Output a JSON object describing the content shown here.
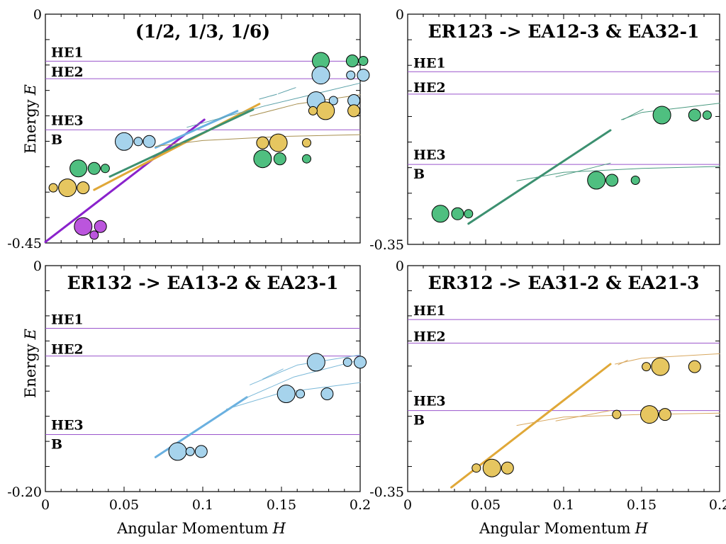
{
  "colors": {
    "green": "#4fbf80",
    "blue": "#a6d3ec",
    "yellow": "#e6c660",
    "purple": "#bb55dd",
    "level": "#9a55cc",
    "line_purple": "#8a22cc",
    "line_orange": "#e0a838",
    "line_green": "#3c9070",
    "line_blue": "#6ab0e0",
    "thin_teal": "#5aa0a8",
    "thin_olive": "#a89050",
    "thin_green": "#4a9a80",
    "thin_blue": "#7ab8d8",
    "thin_orange": "#d8a860"
  },
  "axes": {
    "xlabel": "Angular Momentum",
    "xlabel_var": "H",
    "ylabel": "Energy",
    "ylabel_var": "E"
  },
  "chart_data": [
    {
      "type": "scatter",
      "title": "(1/2, 1/3, 1/6)",
      "xlim": [
        0,
        0.2
      ],
      "ylim": [
        -0.45,
        0
      ],
      "ytick_labels": [
        "0",
        "-0.45"
      ],
      "xtick_labels": [],
      "levels": [
        {
          "name": "HE1",
          "y": -0.0925
        },
        {
          "name": "HE2",
          "y": -0.127
        },
        {
          "name": "HE3",
          "y": -0.2275
        },
        {
          "name": "B",
          "y": -0.2275
        }
      ],
      "lines": [
        {
          "color": "line_purple",
          "width": 3,
          "points": [
            [
              0,
              -0.448
            ],
            [
              0.101,
              -0.2075
            ]
          ]
        },
        {
          "color": "line_orange",
          "width": 3,
          "points": [
            [
              0.031,
              -0.3455
            ],
            [
              0.136,
              -0.1765
            ]
          ]
        },
        {
          "color": "line_green",
          "width": 3,
          "points": [
            [
              0.041,
              -0.3195
            ],
            [
              0.132,
              -0.1875
            ]
          ]
        },
        {
          "color": "line_blue",
          "width": 3,
          "points": [
            [
              0.07,
              -0.2625
            ],
            [
              0.122,
              -0.1905
            ]
          ]
        },
        {
          "color": "thin_teal",
          "width": 1,
          "points": [
            [
              0.09,
              -0.2225
            ],
            [
              0.14,
              -0.18
            ],
            [
              0.2,
              -0.1355
            ]
          ]
        },
        {
          "color": "thin_teal",
          "width": 1,
          "points": [
            [
              0.136,
              -0.167
            ],
            [
              0.147,
              -0.1575
            ]
          ]
        },
        {
          "color": "thin_teal",
          "width": 1,
          "points": [
            [
              0.148,
              -0.1565
            ],
            [
              0.159,
              -0.1445
            ]
          ]
        },
        {
          "color": "thin_olive",
          "width": 1,
          "points": [
            [
              0.07,
              -0.26
            ],
            [
              0.1,
              -0.2485
            ],
            [
              0.15,
              -0.2405
            ],
            [
              0.2,
              -0.237
            ]
          ]
        },
        {
          "color": "thin_olive",
          "width": 1,
          "points": [
            [
              0.13,
              -0.2005
            ],
            [
              0.16,
              -0.1765
            ],
            [
              0.2,
              -0.1585
            ]
          ]
        }
      ],
      "points": [
        {
          "x": 0.175,
          "y": -0.092,
          "r": 12,
          "color": "green"
        },
        {
          "x": 0.195,
          "y": -0.092,
          "r": 8.5,
          "color": "green"
        },
        {
          "x": 0.202,
          "y": -0.092,
          "r": 6.5,
          "color": "green"
        },
        {
          "x": 0.175,
          "y": -0.12,
          "r": 12.5,
          "color": "blue"
        },
        {
          "x": 0.194,
          "y": -0.12,
          "r": 6,
          "color": "blue"
        },
        {
          "x": 0.202,
          "y": -0.12,
          "r": 8.5,
          "color": "blue"
        },
        {
          "x": 0.172,
          "y": -0.17,
          "r": 12.5,
          "color": "blue"
        },
        {
          "x": 0.183,
          "y": -0.17,
          "r": 6,
          "color": "blue"
        },
        {
          "x": 0.196,
          "y": -0.17,
          "r": 8.5,
          "color": "blue"
        },
        {
          "x": 0.178,
          "y": -0.19,
          "r": 12.5,
          "color": "yellow"
        },
        {
          "x": 0.17,
          "y": -0.19,
          "r": 6,
          "color": "yellow"
        },
        {
          "x": 0.196,
          "y": -0.19,
          "r": 8.5,
          "color": "yellow"
        },
        {
          "x": 0.05,
          "y": -0.2505,
          "r": 12.5,
          "color": "blue"
        },
        {
          "x": 0.059,
          "y": -0.2505,
          "r": 6,
          "color": "blue"
        },
        {
          "x": 0.066,
          "y": -0.2505,
          "r": 8.5,
          "color": "blue"
        },
        {
          "x": 0.148,
          "y": -0.253,
          "r": 12.5,
          "color": "yellow"
        },
        {
          "x": 0.138,
          "y": -0.253,
          "r": 8.5,
          "color": "yellow"
        },
        {
          "x": 0.166,
          "y": -0.253,
          "r": 6,
          "color": "yellow"
        },
        {
          "x": 0.138,
          "y": -0.2845,
          "r": 12.5,
          "color": "green"
        },
        {
          "x": 0.149,
          "y": -0.2845,
          "r": 8.5,
          "color": "green"
        },
        {
          "x": 0.166,
          "y": -0.2845,
          "r": 6,
          "color": "green"
        },
        {
          "x": 0.021,
          "y": -0.3035,
          "r": 12,
          "color": "green"
        },
        {
          "x": 0.031,
          "y": -0.3035,
          "r": 8.5,
          "color": "green"
        },
        {
          "x": 0.038,
          "y": -0.3035,
          "r": 6,
          "color": "green"
        },
        {
          "x": 0.014,
          "y": -0.3415,
          "r": 12.5,
          "color": "yellow"
        },
        {
          "x": 0.005,
          "y": -0.3415,
          "r": 6,
          "color": "yellow"
        },
        {
          "x": 0.024,
          "y": -0.3415,
          "r": 8.5,
          "color": "yellow"
        },
        {
          "x": 0.024,
          "y": -0.4175,
          "r": 12.5,
          "color": "purple"
        },
        {
          "x": 0.035,
          "y": -0.4175,
          "r": 8.5,
          "color": "purple"
        },
        {
          "x": 0.031,
          "y": -0.4345,
          "r": 6,
          "color": "purple"
        }
      ]
    },
    {
      "type": "scatter",
      "title": "ER123 -> EA12-3 & EA32-1",
      "xlim": [
        0,
        0.2
      ],
      "ylim": [
        -0.35,
        0
      ],
      "ytick_labels": [
        "0",
        "-0.35"
      ],
      "xtick_labels": [],
      "levels": [
        {
          "name": "HE1",
          "y": -0.0875
        },
        {
          "name": "HE2",
          "y": -0.1215
        },
        {
          "name": "HE3",
          "y": -0.2285
        },
        {
          "name": "B",
          "y": -0.2285
        }
      ],
      "lines": [
        {
          "color": "line_green",
          "width": 3,
          "points": [
            [
              0.039,
              -0.3185
            ],
            [
              0.13,
              -0.1765
            ]
          ]
        },
        {
          "color": "thin_green",
          "width": 1,
          "points": [
            [
              0.07,
              -0.2535
            ],
            [
              0.1,
              -0.2405
            ],
            [
              0.15,
              -0.2345
            ],
            [
              0.2,
              -0.2315
            ]
          ]
        },
        {
          "color": "thin_green",
          "width": 1,
          "points": [
            [
              0.095,
              -0.2475
            ],
            [
              0.13,
              -0.2265
            ]
          ]
        },
        {
          "color": "thin_green",
          "width": 1,
          "points": [
            [
              0.137,
              -0.1605
            ],
            [
              0.15,
              -0.1495
            ],
            [
              0.2,
              -0.1355
            ]
          ]
        },
        {
          "color": "thin_green",
          "width": 1,
          "points": [
            [
              0.138,
              -0.1605
            ],
            [
              0.151,
              -0.1445
            ]
          ]
        }
      ],
      "points": [
        {
          "x": 0.163,
          "y": -0.1535,
          "r": 12.5,
          "color": "green"
        },
        {
          "x": 0.184,
          "y": -0.1535,
          "r": 8.5,
          "color": "green"
        },
        {
          "x": 0.192,
          "y": -0.1535,
          "r": 6,
          "color": "green"
        },
        {
          "x": 0.121,
          "y": -0.2525,
          "r": 12.5,
          "color": "green"
        },
        {
          "x": 0.131,
          "y": -0.2525,
          "r": 8.5,
          "color": "green"
        },
        {
          "x": 0.146,
          "y": -0.2525,
          "r": 6,
          "color": "green"
        },
        {
          "x": 0.021,
          "y": -0.3035,
          "r": 12,
          "color": "green"
        },
        {
          "x": 0.032,
          "y": -0.3035,
          "r": 8.5,
          "color": "green"
        },
        {
          "x": 0.039,
          "y": -0.3035,
          "r": 6,
          "color": "green"
        }
      ]
    },
    {
      "type": "scatter",
      "title": "ER132 -> EA13-2 & EA23-1",
      "xlim": [
        0,
        0.2
      ],
      "ylim": [
        -0.2,
        0
      ],
      "ytick_labels": [
        "0",
        "-0.20"
      ],
      "xtick_labels": [
        "0",
        "0.05",
        "0.1",
        "0.15",
        "0.2"
      ],
      "levels": [
        {
          "name": "HE1",
          "y": -0.0555
        },
        {
          "name": "HE2",
          "y": -0.08
        },
        {
          "name": "HE3",
          "y": -0.1495
        },
        {
          "name": "B",
          "y": -0.1495
        }
      ],
      "lines": [
        {
          "color": "line_blue",
          "width": 3,
          "points": [
            [
              0.07,
              -0.1695
            ],
            [
              0.128,
              -0.1165
            ]
          ]
        },
        {
          "color": "thin_blue",
          "width": 1,
          "points": [
            [
              0.115,
              -0.127
            ],
            [
              0.15,
              -0.1125
            ],
            [
              0.2,
              -0.1035
            ]
          ]
        },
        {
          "color": "thin_blue",
          "width": 1,
          "points": [
            [
              0.126,
              -0.118
            ],
            [
              0.158,
              -0.0985
            ],
            [
              0.2,
              -0.0835
            ]
          ]
        },
        {
          "color": "thin_blue",
          "width": 1,
          "points": [
            [
              0.13,
              -0.1055
            ],
            [
              0.16,
              -0.088
            ],
            [
              0.2,
              -0.079
            ]
          ]
        },
        {
          "color": "thin_blue",
          "width": 1,
          "points": [
            [
              0.138,
              -0.1005
            ],
            [
              0.151,
              -0.0915
            ]
          ]
        }
      ],
      "points": [
        {
          "x": 0.172,
          "y": -0.0855,
          "r": 12.5,
          "color": "blue"
        },
        {
          "x": 0.192,
          "y": -0.0855,
          "r": 6,
          "color": "blue"
        },
        {
          "x": 0.2,
          "y": -0.0855,
          "r": 8.5,
          "color": "blue"
        },
        {
          "x": 0.153,
          "y": -0.1135,
          "r": 12.5,
          "color": "blue"
        },
        {
          "x": 0.162,
          "y": -0.1135,
          "r": 6,
          "color": "blue"
        },
        {
          "x": 0.179,
          "y": -0.1135,
          "r": 8.5,
          "color": "blue"
        },
        {
          "x": 0.084,
          "y": -0.1645,
          "r": 12.5,
          "color": "blue"
        },
        {
          "x": 0.092,
          "y": -0.1645,
          "r": 6,
          "color": "blue"
        },
        {
          "x": 0.099,
          "y": -0.1645,
          "r": 8.5,
          "color": "blue"
        }
      ]
    },
    {
      "type": "scatter",
      "title": "ER312 -> EA31-2 & EA21-3",
      "xlim": [
        0,
        0.2
      ],
      "ylim": [
        -0.35,
        0
      ],
      "ytick_labels": [
        "0",
        "-0.35"
      ],
      "xtick_labels": [
        "0",
        "0.05",
        "0.1",
        "0.15",
        "0.2"
      ],
      "levels": [
        {
          "name": "HE1",
          "y": -0.0835
        },
        {
          "name": "HE2",
          "y": -0.12
        },
        {
          "name": "HE3",
          "y": -0.2245
        },
        {
          "name": "B",
          "y": -0.2245
        }
      ],
      "lines": [
        {
          "color": "line_orange",
          "width": 3,
          "points": [
            [
              0.028,
              -0.3435
            ],
            [
              0.13,
              -0.1525
            ]
          ]
        },
        {
          "color": "thin_orange",
          "width": 1,
          "points": [
            [
              0.07,
              -0.2475
            ],
            [
              0.1,
              -0.2345
            ],
            [
              0.15,
              -0.2305
            ],
            [
              0.2,
              -0.2285
            ]
          ]
        },
        {
          "color": "thin_orange",
          "width": 1,
          "points": [
            [
              0.095,
              -0.2405
            ],
            [
              0.13,
              -0.2245
            ]
          ]
        },
        {
          "color": "thin_orange",
          "width": 1,
          "points": [
            [
              0.133,
              -0.1525
            ],
            [
              0.15,
              -0.1435
            ],
            [
              0.2,
              -0.1365
            ]
          ]
        },
        {
          "color": "thin_orange",
          "width": 1,
          "points": [
            [
              0.135,
              -0.1535
            ],
            [
              0.141,
              -0.1465
            ]
          ]
        }
      ],
      "points": [
        {
          "x": 0.162,
          "y": -0.1565,
          "r": 12.5,
          "color": "yellow"
        },
        {
          "x": 0.153,
          "y": -0.1565,
          "r": 6,
          "color": "yellow"
        },
        {
          "x": 0.184,
          "y": -0.1565,
          "r": 8.5,
          "color": "yellow"
        },
        {
          "x": 0.155,
          "y": -0.2305,
          "r": 12.5,
          "color": "yellow"
        },
        {
          "x": 0.134,
          "y": -0.2305,
          "r": 6,
          "color": "yellow"
        },
        {
          "x": 0.165,
          "y": -0.2305,
          "r": 8.5,
          "color": "yellow"
        },
        {
          "x": 0.054,
          "y": -0.3135,
          "r": 12.5,
          "color": "yellow"
        },
        {
          "x": 0.044,
          "y": -0.3135,
          "r": 6,
          "color": "yellow"
        },
        {
          "x": 0.064,
          "y": -0.3135,
          "r": 8.5,
          "color": "yellow"
        }
      ]
    }
  ]
}
